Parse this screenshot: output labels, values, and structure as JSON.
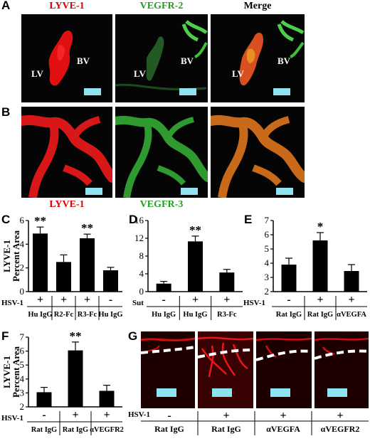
{
  "panel_labels": {
    "A": "A",
    "B": "B",
    "C": "C",
    "D": "D",
    "E": "E",
    "F": "F",
    "G": "G"
  },
  "row_a": {
    "titles": [
      "LYVE-1",
      "VEGFR-2",
      "Merge"
    ],
    "lv": "LV",
    "bv": "BV"
  },
  "row_b": {
    "titles": [
      "LYVE-1",
      "VEGFR-3"
    ]
  },
  "y_axis_label_line1": "LYVE-1",
  "y_axis_label_line2": "Percent Area",
  "hsv_label": "HSV-1",
  "sut_label": "Sut",
  "colors": {
    "lyve": "#e00000",
    "vegfr": "#1f9e1f",
    "scalebar": "#8fe3f0",
    "bar": "#000000"
  },
  "chart_data": [
    {
      "panel": "C",
      "type": "bar",
      "ylim": [
        0,
        6
      ],
      "yticks": [
        0,
        2,
        4,
        6
      ],
      "signs": [
        "+",
        "+",
        "+",
        "-"
      ],
      "categories": [
        "Hu IgG",
        "R2-Fc",
        "R3-Fc",
        "Hu IgG"
      ],
      "values": [
        4.9,
        2.5,
        4.5,
        1.8
      ],
      "errors": [
        0.55,
        0.6,
        0.35,
        0.25
      ],
      "annotations": [
        "**",
        "",
        "**",
        ""
      ]
    },
    {
      "panel": "D",
      "type": "bar",
      "ylim": [
        0,
        16
      ],
      "yticks": [
        0,
        4,
        8,
        12,
        16
      ],
      "signs": [
        "-",
        "+",
        "+"
      ],
      "categories": [
        "Hu IgG",
        "Hu IgG",
        "R3-Fc"
      ],
      "values": [
        1.8,
        11.3,
        4.3
      ],
      "errors": [
        0.5,
        1.2,
        0.7
      ],
      "annotations": [
        "",
        "**",
        ""
      ]
    },
    {
      "panel": "E",
      "type": "bar",
      "ylim": [
        2,
        7
      ],
      "yticks": [
        2,
        3,
        4,
        5,
        6,
        7
      ],
      "signs": [
        "-",
        "+",
        "+"
      ],
      "categories": [
        "Rat IgG",
        "Rat IgG",
        "αVEGFA"
      ],
      "values": [
        3.9,
        5.6,
        3.45
      ],
      "errors": [
        0.45,
        0.55,
        0.45
      ],
      "annotations": [
        "",
        "*",
        ""
      ]
    },
    {
      "panel": "F",
      "type": "bar",
      "ylim": [
        2,
        7
      ],
      "yticks": [
        2,
        3,
        4,
        5,
        6,
        7
      ],
      "signs": [
        "-",
        "+",
        "+"
      ],
      "categories": [
        "Rat IgG",
        "Rat IgG",
        "αVEGFR2"
      ],
      "values": [
        3.05,
        6.05,
        3.15
      ],
      "errors": [
        0.35,
        0.6,
        0.4
      ],
      "annotations": [
        "",
        "**",
        ""
      ]
    }
  ],
  "panel_g": {
    "signs": [
      "-",
      "+",
      "+",
      "+"
    ],
    "categories": [
      "Rat IgG",
      "Rat IgG",
      "αVEGFA",
      "αVEGFR2"
    ]
  }
}
